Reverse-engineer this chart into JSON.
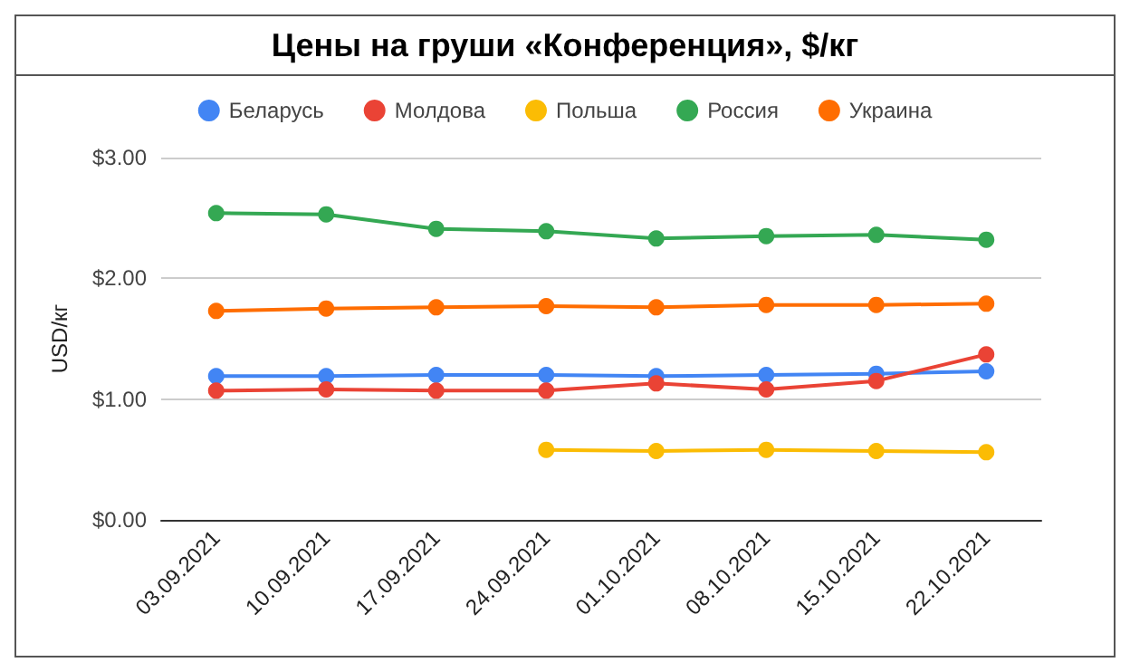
{
  "chart_data": {
    "type": "line",
    "title": "Цены на груши «Конференция», $/кг",
    "ylabel": "USD/кг",
    "categories": [
      "03.09.2021",
      "10.09.2021",
      "17.09.2021",
      "24.09.2021",
      "01.10.2021",
      "08.10.2021",
      "15.10.2021",
      "22.10.2021"
    ],
    "series": [
      {
        "name": "Беларусь",
        "color": "#4285f4",
        "values": [
          1.19,
          1.19,
          1.2,
          1.2,
          1.19,
          1.2,
          1.21,
          1.23
        ]
      },
      {
        "name": "Молдова",
        "color": "#ea4335",
        "values": [
          1.07,
          1.08,
          1.07,
          1.07,
          1.13,
          1.08,
          1.15,
          1.37
        ]
      },
      {
        "name": "Польша",
        "color": "#fbbc04",
        "values": [
          null,
          null,
          null,
          0.58,
          0.57,
          0.58,
          0.57,
          0.56
        ]
      },
      {
        "name": "Россия",
        "color": "#34a853",
        "values": [
          2.54,
          2.53,
          2.41,
          2.39,
          2.33,
          2.35,
          2.36,
          2.32
        ]
      },
      {
        "name": "Украина",
        "color": "#ff6d01",
        "values": [
          1.73,
          1.75,
          1.76,
          1.77,
          1.76,
          1.78,
          1.78,
          1.79
        ]
      }
    ],
    "ylim": [
      0,
      3
    ],
    "yticks": [
      {
        "value": 0,
        "label": "$0.00"
      },
      {
        "value": 1,
        "label": "$1.00"
      },
      {
        "value": 2,
        "label": "$2.00"
      },
      {
        "value": 3,
        "label": "$3.00"
      }
    ],
    "grid": "y",
    "legend": "top",
    "marker": "circle",
    "line_style": "solid"
  }
}
